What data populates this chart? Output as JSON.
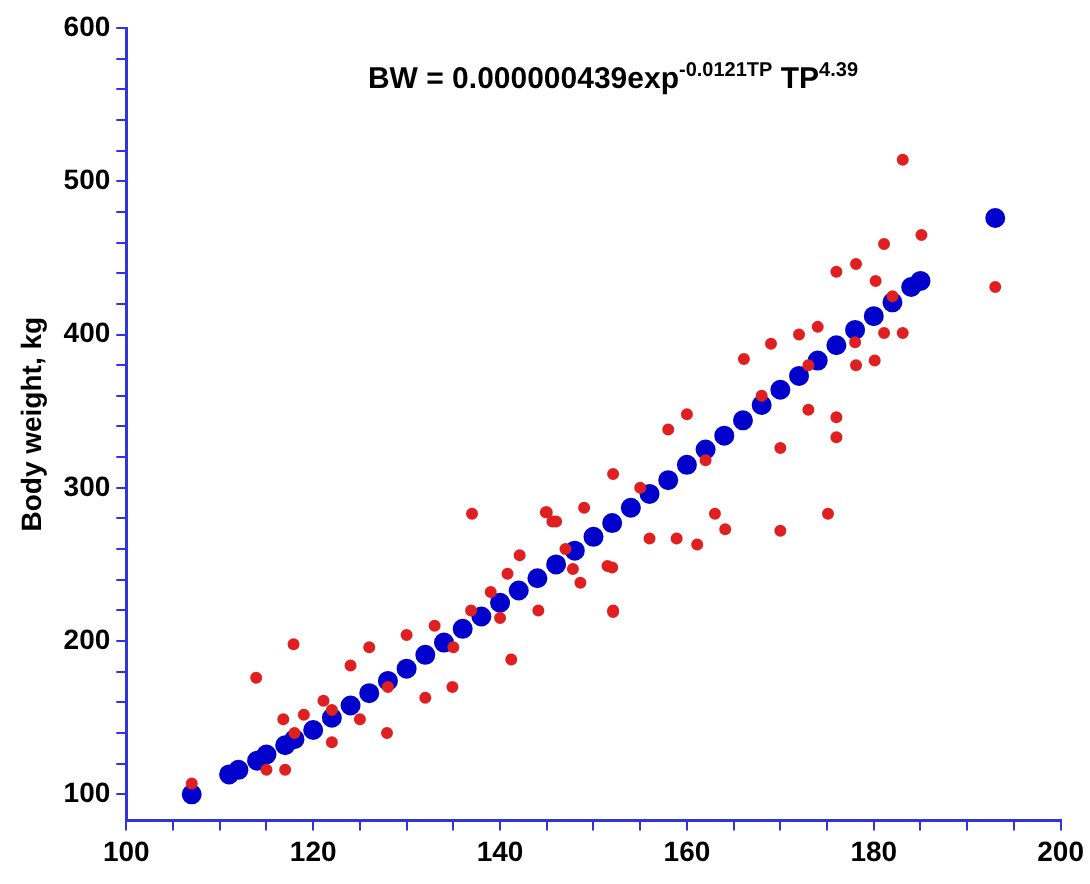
{
  "chart_data": {
    "type": "scatter",
    "title": "BW = 0.000000439exp$^{-0.0121TP}$ TP$^{4.39}$",
    "ylabel": "Body weight, kg",
    "xlim": [
      100,
      200
    ],
    "ylim": [
      83,
      600
    ],
    "xticks": [
      100,
      {
        "value": 105,
        "label": null
      },
      {
        "value": 110,
        "label": null
      },
      {
        "value": 115,
        "label": null
      },
      120,
      {
        "value": 125,
        "label": null
      },
      {
        "value": 130,
        "label": null
      },
      {
        "value": 135,
        "label": null
      },
      140,
      {
        "value": 145,
        "label": null
      },
      {
        "value": 150,
        "label": null
      },
      {
        "value": 155,
        "label": null
      },
      160,
      {
        "value": 165,
        "label": null
      },
      {
        "value": 170,
        "label": null
      },
      {
        "value": 175,
        "label": null
      },
      180,
      {
        "value": 185,
        "label": null
      },
      {
        "value": 190,
        "label": null
      },
      {
        "value": 195,
        "label": null
      },
      200
    ],
    "yticks": [
      100,
      {
        "value": 120,
        "label": null
      },
      {
        "value": 140,
        "label": null
      },
      {
        "value": 160,
        "label": null
      },
      {
        "value": 180,
        "label": null
      },
      200,
      {
        "value": 220,
        "label": null
      },
      {
        "value": 240,
        "label": null
      },
      {
        "value": 260,
        "label": null
      },
      {
        "value": 280,
        "label": null
      },
      300,
      {
        "value": 320,
        "label": null
      },
      {
        "value": 340,
        "label": null
      },
      {
        "value": 360,
        "label": null
      },
      {
        "value": 380,
        "label": null
      },
      400,
      {
        "value": 420,
        "label": null
      },
      {
        "value": 440,
        "label": null
      },
      {
        "value": 460,
        "label": null
      },
      {
        "value": 480,
        "label": null
      },
      500,
      {
        "value": 520,
        "label": null
      },
      {
        "value": 540,
        "label": null
      },
      {
        "value": 560,
        "label": null
      },
      {
        "value": 580,
        "label": null
      },
      600
    ],
    "grid": false,
    "legend": false,
    "marker": "circle",
    "series": [
      {
        "color": "#e02020",
        "x": [
          107,
          113.9,
          117.9,
          115,
          117,
          137,
          144.9,
          152.1,
          149,
          183.1,
          193,
          185.1,
          181.1,
          175.1,
          170,
          152.1,
          161.1,
          164.1,
          163,
          176,
          178.1,
          180.2,
          183.1,
          181.1,
          180.1,
          178.1,
          176,
          176,
          170,
          166.1,
          169,
          172,
          174,
          158,
          160,
          152.1,
          145,
          145.6,
          152,
          158.9,
          156,
          173,
          127.9,
          122,
          125,
          132,
          134.9,
          141.2,
          144.1,
          147.8,
          148.6,
          151.5,
          124,
          126,
          130,
          133,
          136.9,
          139,
          140.8,
          142.1,
          146,
          116.8,
          119,
          121.1,
          118,
          122,
          128,
          135,
          140,
          147,
          155,
          162,
          168,
          173,
          178,
          182
        ],
        "values": [
          107,
          176,
          198,
          116,
          116,
          283,
          284,
          220,
          287,
          514,
          431,
          465,
          459,
          283,
          272,
          219,
          263,
          273,
          283,
          441,
          446,
          435,
          401,
          401,
          383,
          380,
          346,
          333,
          326,
          384,
          394,
          400,
          405,
          338,
          348,
          309,
          284,
          278,
          248,
          267,
          267,
          351,
          140,
          134,
          149,
          163,
          170,
          188,
          220,
          247,
          238,
          249,
          184,
          196,
          204,
          210,
          220,
          232,
          244,
          256,
          278,
          149,
          152,
          161,
          140,
          155,
          170,
          196,
          215,
          260,
          300,
          318,
          360,
          380,
          395,
          425
        ]
      },
      {
        "color": "#0000cc",
        "x": [
          107,
          111,
          112,
          114,
          115,
          117,
          118,
          120,
          122,
          124,
          126,
          128,
          130,
          132,
          134,
          136,
          138,
          140,
          142,
          144,
          146,
          148,
          150,
          152,
          154,
          156,
          158,
          160,
          162,
          164,
          166,
          168,
          170,
          172,
          174,
          176,
          178,
          180,
          182,
          184,
          185,
          193
        ],
        "values": [
          100,
          113,
          116,
          122,
          126,
          132,
          136,
          142,
          150,
          158,
          166,
          174,
          182,
          191,
          199,
          208,
          216,
          225,
          233,
          241,
          250,
          259,
          268,
          277,
          287,
          296,
          305,
          315,
          325,
          334,
          344,
          354,
          364,
          373,
          383,
          393,
          403,
          412,
          421,
          431,
          435,
          476
        ]
      }
    ]
  }
}
